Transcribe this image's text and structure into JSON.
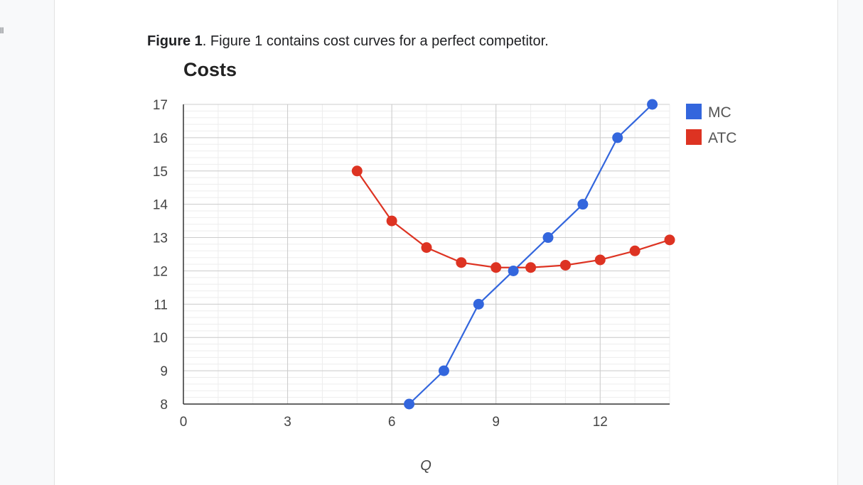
{
  "side_mark": "ll",
  "caption": {
    "label": "Figure 1",
    "text": ". Figure 1 contains cost curves for a perfect competitor."
  },
  "chart_data": {
    "type": "line",
    "title": "Costs",
    "xlabel": "Q",
    "ylabel": "",
    "xlim": [
      0,
      14
    ],
    "ylim": [
      8,
      17
    ],
    "xticks": [
      "0",
      "3",
      "6",
      "9",
      "12"
    ],
    "xtick_values": [
      0,
      3,
      6,
      9,
      12
    ],
    "yticks": [
      "8",
      "9",
      "10",
      "11",
      "12",
      "13",
      "14",
      "15",
      "16",
      "17"
    ],
    "ytick_values": [
      8,
      9,
      10,
      11,
      12,
      13,
      14,
      15,
      16,
      17
    ],
    "grid": true,
    "legend": "right",
    "series": [
      {
        "name": "MC",
        "color": "#3366dd",
        "x": [
          6.5,
          7.5,
          8.5,
          9.5,
          10.5,
          11.5,
          12.5,
          13.5
        ],
        "y": [
          8,
          9,
          11,
          12,
          13,
          14,
          16,
          17
        ]
      },
      {
        "name": "ATC",
        "color": "#dd3322",
        "x": [
          5,
          6,
          7,
          8,
          9,
          10,
          11,
          12,
          13,
          14
        ],
        "y": [
          15,
          13.5,
          12.7,
          12.25,
          12.1,
          12.1,
          12.17,
          12.33,
          12.6,
          12.93
        ]
      }
    ]
  }
}
